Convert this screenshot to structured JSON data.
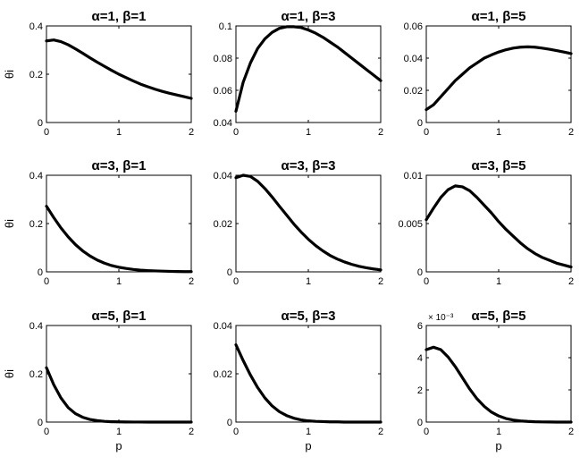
{
  "chart_data": [
    {
      "type": "line",
      "title": "α=1, β=1",
      "xlabel": "",
      "ylabel": "θi",
      "xlim": [
        0,
        2
      ],
      "ylim": [
        0,
        0.4
      ],
      "xticks": [
        "0",
        "1",
        "2"
      ],
      "yticks": [
        "0",
        "0.2",
        "0.4"
      ],
      "yscale_note": "",
      "series": [
        {
          "x": [
            0,
            0.1,
            0.2,
            0.3,
            0.4,
            0.5,
            0.6,
            0.7,
            0.8,
            0.9,
            1.0,
            1.1,
            1.2,
            1.3,
            1.4,
            1.5,
            1.6,
            1.7,
            1.8,
            1.9,
            2.0
          ],
          "y": [
            0.338,
            0.342,
            0.335,
            0.322,
            0.305,
            0.287,
            0.268,
            0.25,
            0.233,
            0.216,
            0.2,
            0.186,
            0.172,
            0.159,
            0.148,
            0.138,
            0.129,
            0.121,
            0.114,
            0.107,
            0.1
          ]
        }
      ]
    },
    {
      "type": "line",
      "title": "α=1, β=3",
      "xlabel": "",
      "ylabel": "",
      "xlim": [
        0,
        2
      ],
      "ylim": [
        0.04,
        0.1
      ],
      "xticks": [
        "0",
        "1",
        "2"
      ],
      "yticks": [
        "0.04",
        "0.06",
        "0.08",
        "0.1"
      ],
      "yscale_note": "",
      "series": [
        {
          "x": [
            0,
            0.1,
            0.2,
            0.3,
            0.4,
            0.5,
            0.6,
            0.7,
            0.8,
            0.9,
            1.0,
            1.1,
            1.2,
            1.3,
            1.4,
            1.5,
            1.6,
            1.7,
            1.8,
            1.9,
            2.0
          ],
          "y": [
            0.047,
            0.065,
            0.077,
            0.086,
            0.092,
            0.096,
            0.0985,
            0.0995,
            0.0995,
            0.099,
            0.0975,
            0.0955,
            0.093,
            0.09,
            0.087,
            0.0835,
            0.08,
            0.0765,
            0.073,
            0.0695,
            0.066
          ]
        }
      ]
    },
    {
      "type": "line",
      "title": "α=1, β=5",
      "xlabel": "",
      "ylabel": "",
      "xlim": [
        0,
        2
      ],
      "ylim": [
        0,
        0.06
      ],
      "xticks": [
        "0",
        "1",
        "2"
      ],
      "yticks": [
        "0",
        "0.02",
        "0.04",
        "0.06"
      ],
      "yscale_note": "",
      "series": [
        {
          "x": [
            0,
            0.1,
            0.2,
            0.3,
            0.4,
            0.5,
            0.6,
            0.7,
            0.8,
            0.9,
            1.0,
            1.1,
            1.2,
            1.3,
            1.4,
            1.5,
            1.6,
            1.7,
            1.8,
            1.9,
            2.0
          ],
          "y": [
            0.008,
            0.011,
            0.016,
            0.021,
            0.026,
            0.03,
            0.034,
            0.037,
            0.04,
            0.042,
            0.0438,
            0.0452,
            0.0462,
            0.0468,
            0.047,
            0.0468,
            0.0462,
            0.0455,
            0.0447,
            0.0438,
            0.0428
          ]
        }
      ]
    },
    {
      "type": "line",
      "title": "α=3, β=1",
      "xlabel": "",
      "ylabel": "θi",
      "xlim": [
        0,
        2
      ],
      "ylim": [
        0,
        0.4
      ],
      "xticks": [
        "0",
        "1",
        "2"
      ],
      "yticks": [
        "0",
        "0.2",
        "0.4"
      ],
      "yscale_note": "",
      "series": [
        {
          "x": [
            0,
            0.1,
            0.2,
            0.3,
            0.4,
            0.5,
            0.6,
            0.7,
            0.8,
            0.9,
            1.0,
            1.1,
            1.2,
            1.3,
            1.4,
            1.5,
            1.6,
            1.7,
            1.8,
            1.9,
            2.0
          ],
          "y": [
            0.272,
            0.225,
            0.182,
            0.145,
            0.113,
            0.087,
            0.066,
            0.049,
            0.036,
            0.026,
            0.019,
            0.014,
            0.01,
            0.007,
            0.005,
            0.004,
            0.003,
            0.002,
            0.0015,
            0.001,
            0.001
          ]
        }
      ]
    },
    {
      "type": "line",
      "title": "α=3, β=3",
      "xlabel": "",
      "ylabel": "",
      "xlim": [
        0,
        2
      ],
      "ylim": [
        0,
        0.04
      ],
      "xticks": [
        "0",
        "1",
        "2"
      ],
      "yticks": [
        "0",
        "0.02",
        "0.04"
      ],
      "yscale_note": "",
      "series": [
        {
          "x": [
            0,
            0.1,
            0.2,
            0.3,
            0.4,
            0.5,
            0.6,
            0.7,
            0.8,
            0.9,
            1.0,
            1.1,
            1.2,
            1.3,
            1.4,
            1.5,
            1.6,
            1.7,
            1.8,
            1.9,
            2.0
          ],
          "y": [
            0.039,
            0.04,
            0.0395,
            0.0375,
            0.0345,
            0.031,
            0.0272,
            0.0235,
            0.0198,
            0.0165,
            0.0135,
            0.0109,
            0.0087,
            0.0068,
            0.0053,
            0.0041,
            0.0031,
            0.0023,
            0.0017,
            0.0012,
            0.0008
          ]
        }
      ]
    },
    {
      "type": "line",
      "title": "α=3, β=5",
      "xlabel": "",
      "ylabel": "",
      "xlim": [
        0,
        2
      ],
      "ylim": [
        0,
        0.01
      ],
      "xticks": [
        "0",
        "1",
        "2"
      ],
      "yticks": [
        "0",
        "0.005",
        "0.01"
      ],
      "yscale_note": "",
      "series": [
        {
          "x": [
            0,
            0.1,
            0.2,
            0.3,
            0.4,
            0.5,
            0.6,
            0.7,
            0.8,
            0.9,
            1.0,
            1.1,
            1.2,
            1.3,
            1.4,
            1.5,
            1.6,
            1.7,
            1.8,
            1.9,
            2.0
          ],
          "y": [
            0.0054,
            0.0066,
            0.0077,
            0.0085,
            0.0089,
            0.0088,
            0.0084,
            0.0077,
            0.0069,
            0.0061,
            0.0052,
            0.0044,
            0.0037,
            0.003,
            0.0024,
            0.0019,
            0.0015,
            0.0012,
            0.0009,
            0.0007,
            0.0005
          ]
        }
      ]
    },
    {
      "type": "line",
      "title": "α=5, β=1",
      "xlabel": "p",
      "ylabel": "θi",
      "xlim": [
        0,
        2
      ],
      "ylim": [
        0,
        0.4
      ],
      "xticks": [
        "0",
        "1",
        "2"
      ],
      "yticks": [
        "0",
        "0.2",
        "0.4"
      ],
      "yscale_note": "",
      "series": [
        {
          "x": [
            0,
            0.1,
            0.2,
            0.3,
            0.4,
            0.5,
            0.6,
            0.7,
            0.8,
            0.9,
            1.0,
            1.1,
            1.2,
            1.3,
            1.4,
            1.5,
            1.6,
            1.7,
            1.8,
            1.9,
            2.0
          ],
          "y": [
            0.225,
            0.155,
            0.1,
            0.06,
            0.035,
            0.02,
            0.011,
            0.006,
            0.003,
            0.0015,
            0.001,
            0.0005,
            0.0003,
            0.0002,
            0.0001,
            0.0001,
            0,
            0,
            0,
            0,
            0
          ]
        }
      ]
    },
    {
      "type": "line",
      "title": "α=5, β=3",
      "xlabel": "p",
      "ylabel": "",
      "xlim": [
        0,
        2
      ],
      "ylim": [
        0,
        0.04
      ],
      "xticks": [
        "0",
        "1",
        "2"
      ],
      "yticks": [
        "0",
        "0.02",
        "0.04"
      ],
      "yscale_note": "",
      "series": [
        {
          "x": [
            0,
            0.1,
            0.2,
            0.3,
            0.4,
            0.5,
            0.6,
            0.7,
            0.8,
            0.9,
            1.0,
            1.1,
            1.2,
            1.3,
            1.4,
            1.5,
            1.6,
            1.7,
            1.8,
            1.9,
            2.0
          ],
          "y": [
            0.032,
            0.0255,
            0.0195,
            0.0143,
            0.01,
            0.0067,
            0.0043,
            0.0027,
            0.0016,
            0.0009,
            0.0005,
            0.0003,
            0.0002,
            0.0001,
            0.0001,
            0,
            0,
            0,
            0,
            0,
            0
          ]
        }
      ]
    },
    {
      "type": "line",
      "title": "α=5, β=5",
      "xlabel": "p",
      "ylabel": "",
      "xlim": [
        0,
        2
      ],
      "ylim": [
        0,
        6
      ],
      "xticks": [
        "0",
        "1",
        "2"
      ],
      "yticks": [
        "0",
        "2",
        "4",
        "6"
      ],
      "yscale_note": "× 10⁻³",
      "series": [
        {
          "x": [
            0,
            0.1,
            0.2,
            0.3,
            0.4,
            0.5,
            0.6,
            0.7,
            0.8,
            0.9,
            1.0,
            1.1,
            1.2,
            1.3,
            1.4,
            1.5,
            1.6,
            1.7,
            1.8,
            1.9,
            2.0
          ],
          "y": [
            4.5,
            4.65,
            4.5,
            4.05,
            3.45,
            2.75,
            2.05,
            1.45,
            0.98,
            0.62,
            0.38,
            0.22,
            0.13,
            0.07,
            0.04,
            0.02,
            0.01,
            0.005,
            0,
            0,
            0
          ]
        }
      ]
    }
  ]
}
